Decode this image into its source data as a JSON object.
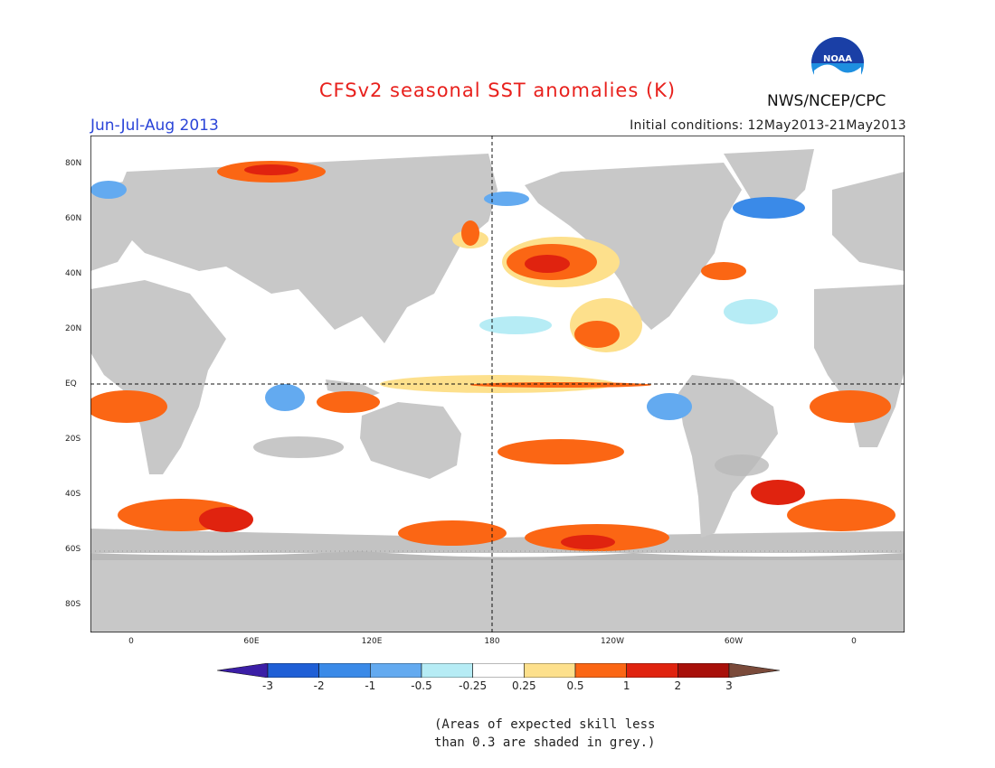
{
  "header": {
    "title": "CFSv2 seasonal SST anomalies (K)",
    "period": "Jun-Jul-Aug 2013",
    "initial_conditions": "Initial conditions: 12May2013-21May2013",
    "agency": "NWS/NCEP/CPC",
    "logo_text": "NOAA"
  },
  "map": {
    "lat_labels": [
      "80N",
      "60N",
      "40N",
      "20N",
      "EQ",
      "20S",
      "40S",
      "60S",
      "80S"
    ],
    "lon_labels": [
      "0",
      "60E",
      "120E",
      "180",
      "120W",
      "60W",
      "0"
    ],
    "land_color": "#c8c8c8",
    "grey_mask_color": "#b9b9b9",
    "ocean_color": "#ffffff",
    "reference_lines": [
      "EQ",
      "180"
    ]
  },
  "colorbar": {
    "labels": [
      "-3",
      "-2",
      "-1",
      "-0.5",
      "-0.25",
      "0.25",
      "0.5",
      "1",
      "2",
      "3"
    ],
    "colors": [
      "#3b1ea6",
      "#1f5fd6",
      "#3a8ae8",
      "#63aaf0",
      "#b6ecf5",
      "#ffffff",
      "#fde08c",
      "#fb6614",
      "#e0230f",
      "#a8100a",
      "#7a4a3a"
    ]
  },
  "footnote": {
    "line1": "(Areas of expected skill less",
    "line2": "than 0.3 are shaded in grey.)"
  }
}
